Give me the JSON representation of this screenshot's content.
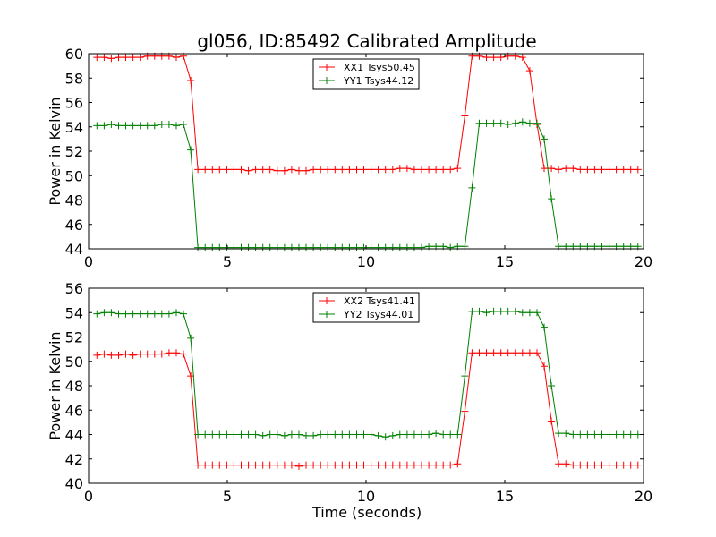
{
  "figure": {
    "title": "gl056, ID:85492 Calibrated Amplitude",
    "xlabel": "Time (seconds)"
  },
  "chart_data": [
    {
      "type": "line",
      "title": "gl056, ID:85492 Calibrated Amplitude",
      "xlabel": "",
      "ylabel": "Power in Kelvin",
      "xlim": [
        0,
        20
      ],
      "ylim": [
        44,
        60
      ],
      "xticks": [
        0,
        5,
        10,
        15,
        20
      ],
      "yticks": [
        44,
        46,
        48,
        50,
        52,
        54,
        56,
        58,
        60
      ],
      "legend_position": "upper-center",
      "x": [
        0.3,
        0.56,
        0.82,
        1.08,
        1.34,
        1.6,
        1.86,
        2.12,
        2.38,
        2.64,
        2.9,
        3.16,
        3.42,
        3.68,
        3.94,
        4.2,
        4.46,
        4.72,
        4.98,
        5.24,
        5.5,
        5.76,
        6.02,
        6.28,
        6.54,
        6.8,
        7.06,
        7.32,
        7.58,
        7.84,
        8.1,
        8.36,
        8.62,
        8.88,
        9.14,
        9.4,
        9.66,
        9.92,
        10.18,
        10.44,
        10.7,
        10.96,
        11.22,
        11.48,
        11.74,
        12.0,
        12.26,
        12.52,
        12.78,
        13.04,
        13.3,
        13.56,
        13.82,
        14.08,
        14.34,
        14.6,
        14.86,
        15.12,
        15.38,
        15.64,
        15.9,
        16.16,
        16.42,
        16.68,
        16.94,
        17.2,
        17.46,
        17.72,
        17.98,
        18.24,
        18.5,
        18.76,
        19.02,
        19.28,
        19.54,
        19.8
      ],
      "series": [
        {
          "name": "XX1 Tsys50.45",
          "color": "#ff0000",
          "values": [
            59.7,
            59.7,
            59.6,
            59.7,
            59.7,
            59.7,
            59.7,
            59.8,
            59.8,
            59.8,
            59.8,
            59.7,
            59.8,
            57.8,
            50.5,
            50.5,
            50.5,
            50.5,
            50.5,
            50.5,
            50.5,
            50.4,
            50.5,
            50.5,
            50.5,
            50.4,
            50.4,
            50.5,
            50.4,
            50.4,
            50.5,
            50.5,
            50.5,
            50.5,
            50.5,
            50.5,
            50.5,
            50.5,
            50.5,
            50.5,
            50.5,
            50.5,
            50.6,
            50.6,
            50.5,
            50.5,
            50.5,
            50.5,
            50.5,
            50.5,
            50.6,
            54.9,
            59.8,
            59.8,
            59.7,
            59.7,
            59.7,
            59.8,
            59.8,
            59.7,
            58.6,
            54.2,
            50.6,
            50.6,
            50.5,
            50.6,
            50.6,
            50.5,
            50.5,
            50.5,
            50.5,
            50.5,
            50.5,
            50.5,
            50.5,
            50.5
          ]
        },
        {
          "name": "YY1 Tsys44.12",
          "color": "#008000",
          "values": [
            54.1,
            54.1,
            54.2,
            54.1,
            54.1,
            54.1,
            54.1,
            54.1,
            54.1,
            54.2,
            54.2,
            54.1,
            54.2,
            52.1,
            44.1,
            44.1,
            44.1,
            44.1,
            44.1,
            44.1,
            44.1,
            44.1,
            44.1,
            44.1,
            44.1,
            44.1,
            44.1,
            44.1,
            44.1,
            44.1,
            44.1,
            44.1,
            44.1,
            44.1,
            44.1,
            44.1,
            44.1,
            44.1,
            44.1,
            44.1,
            44.1,
            44.1,
            44.1,
            44.1,
            44.1,
            44.1,
            44.2,
            44.2,
            44.2,
            44.1,
            44.2,
            44.2,
            49.0,
            54.3,
            54.3,
            54.3,
            54.3,
            54.2,
            54.3,
            54.4,
            54.3,
            54.3,
            53.0,
            48.1,
            44.2,
            44.2,
            44.2,
            44.2,
            44.2,
            44.2,
            44.2,
            44.2,
            44.2,
            44.2,
            44.2,
            44.2
          ]
        }
      ]
    },
    {
      "type": "line",
      "title": "",
      "xlabel": "Time (seconds)",
      "ylabel": "Power in Kelvin",
      "xlim": [
        0,
        20
      ],
      "ylim": [
        40,
        56
      ],
      "xticks": [
        0,
        5,
        10,
        15,
        20
      ],
      "yticks": [
        40,
        42,
        44,
        46,
        48,
        50,
        52,
        54,
        56
      ],
      "legend_position": "upper-center",
      "x": [
        0.3,
        0.56,
        0.82,
        1.08,
        1.34,
        1.6,
        1.86,
        2.12,
        2.38,
        2.64,
        2.9,
        3.16,
        3.42,
        3.68,
        3.94,
        4.2,
        4.46,
        4.72,
        4.98,
        5.24,
        5.5,
        5.76,
        6.02,
        6.28,
        6.54,
        6.8,
        7.06,
        7.32,
        7.58,
        7.84,
        8.1,
        8.36,
        8.62,
        8.88,
        9.14,
        9.4,
        9.66,
        9.92,
        10.18,
        10.44,
        10.7,
        10.96,
        11.22,
        11.48,
        11.74,
        12.0,
        12.26,
        12.52,
        12.78,
        13.04,
        13.3,
        13.56,
        13.82,
        14.08,
        14.34,
        14.6,
        14.86,
        15.12,
        15.38,
        15.64,
        15.9,
        16.16,
        16.42,
        16.68,
        16.94,
        17.2,
        17.46,
        17.72,
        17.98,
        18.24,
        18.5,
        18.76,
        19.02,
        19.28,
        19.54,
        19.8
      ],
      "series": [
        {
          "name": "XX2 Tsys41.41",
          "color": "#ff0000",
          "values": [
            50.5,
            50.6,
            50.5,
            50.5,
            50.6,
            50.5,
            50.6,
            50.6,
            50.6,
            50.6,
            50.7,
            50.7,
            50.6,
            48.8,
            41.5,
            41.5,
            41.5,
            41.5,
            41.5,
            41.5,
            41.5,
            41.5,
            41.5,
            41.5,
            41.5,
            41.5,
            41.5,
            41.5,
            41.4,
            41.5,
            41.5,
            41.5,
            41.5,
            41.5,
            41.5,
            41.5,
            41.5,
            41.5,
            41.5,
            41.5,
            41.5,
            41.5,
            41.5,
            41.5,
            41.5,
            41.5,
            41.5,
            41.5,
            41.5,
            41.5,
            41.6,
            45.9,
            50.7,
            50.7,
            50.7,
            50.7,
            50.7,
            50.7,
            50.7,
            50.7,
            50.7,
            50.7,
            49.6,
            45.1,
            41.6,
            41.6,
            41.5,
            41.5,
            41.5,
            41.5,
            41.5,
            41.5,
            41.5,
            41.5,
            41.5,
            41.5
          ]
        },
        {
          "name": "YY2 Tsys44.01",
          "color": "#008000",
          "values": [
            53.9,
            54.0,
            54.0,
            53.9,
            53.9,
            53.9,
            53.9,
            53.9,
            53.9,
            53.9,
            53.9,
            54.0,
            53.9,
            51.9,
            44.0,
            44.0,
            44.0,
            44.0,
            44.0,
            44.0,
            44.0,
            44.0,
            44.0,
            43.9,
            44.0,
            44.0,
            43.9,
            44.0,
            44.0,
            43.9,
            43.9,
            44.0,
            44.0,
            44.0,
            44.0,
            44.0,
            44.0,
            44.0,
            44.0,
            43.9,
            43.8,
            43.9,
            44.0,
            44.0,
            44.0,
            44.0,
            44.0,
            44.1,
            44.0,
            44.0,
            44.0,
            48.8,
            54.1,
            54.1,
            54.0,
            54.1,
            54.1,
            54.1,
            54.1,
            54.0,
            54.0,
            54.0,
            52.8,
            48.0,
            44.1,
            44.1,
            44.0,
            44.0,
            44.0,
            44.0,
            44.0,
            44.0,
            44.0,
            44.0,
            44.0,
            44.0
          ]
        }
      ]
    }
  ]
}
